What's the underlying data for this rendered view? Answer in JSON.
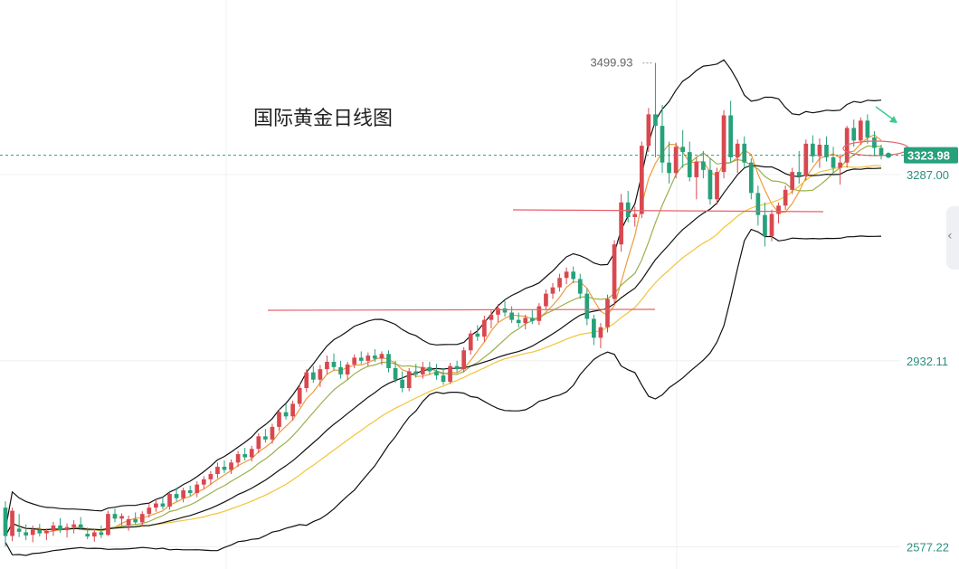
{
  "chart_data": {
    "type": "candlestick",
    "title": "国际黄金日线图",
    "y_axis_labels": [
      {
        "text": "3287.00",
        "value": 3287.0
      },
      {
        "text": "2932.11",
        "value": 2932.11
      },
      {
        "text": "2577.22",
        "value": 2577.22
      }
    ],
    "current_price_tag": {
      "text": "3323.98",
      "value": 3323.98
    },
    "high_marker": {
      "text": "3499.93",
      "value": 3499.93
    },
    "ylim": [
      2535,
      3620
    ],
    "grid": true,
    "colors": {
      "up": "#d9484f",
      "down": "#26a17b",
      "ma_fast": "#f09a3e",
      "ma_mid": "#9ab04a",
      "ma_slow": "#f2c438",
      "bollinger": "#111111",
      "support_line": "#e8606a",
      "price_tag": "#26a17b",
      "axis_text": "#2a8f7f"
    },
    "candles": [
      [
        2652,
        2664,
        2578,
        2598
      ],
      [
        2598,
        2652,
        2588,
        2646
      ],
      [
        2612,
        2640,
        2596,
        2606
      ],
      [
        2605,
        2620,
        2590,
        2599
      ],
      [
        2600,
        2618,
        2586,
        2610
      ],
      [
        2610,
        2621,
        2597,
        2603
      ],
      [
        2603,
        2612,
        2590,
        2608
      ],
      [
        2608,
        2625,
        2598,
        2618
      ],
      [
        2618,
        2632,
        2604,
        2609
      ],
      [
        2609,
        2622,
        2595,
        2615
      ],
      [
        2615,
        2628,
        2603,
        2620
      ],
      [
        2620,
        2634,
        2610,
        2614
      ],
      [
        2602,
        2614,
        2592,
        2597
      ],
      [
        2597,
        2611,
        2587,
        2605
      ],
      [
        2605,
        2618,
        2594,
        2600
      ],
      [
        2600,
        2646,
        2598,
        2640
      ],
      [
        2640,
        2650,
        2624,
        2631
      ],
      [
        2631,
        2641,
        2618,
        2636
      ],
      [
        2618,
        2637,
        2608,
        2630
      ],
      [
        2630,
        2643,
        2620,
        2624
      ],
      [
        2624,
        2645,
        2616,
        2640
      ],
      [
        2640,
        2659,
        2633,
        2652
      ],
      [
        2652,
        2668,
        2644,
        2660
      ],
      [
        2660,
        2672,
        2649,
        2654
      ],
      [
        2654,
        2684,
        2648,
        2678
      ],
      [
        2678,
        2690,
        2664,
        2670
      ],
      [
        2670,
        2690,
        2662,
        2685
      ],
      [
        2685,
        2694,
        2674,
        2680
      ],
      [
        2680,
        2702,
        2672,
        2696
      ],
      [
        2696,
        2712,
        2688,
        2706
      ],
      [
        2706,
        2722,
        2696,
        2716
      ],
      [
        2716,
        2738,
        2708,
        2730
      ],
      [
        2730,
        2742,
        2718,
        2724
      ],
      [
        2724,
        2744,
        2716,
        2738
      ],
      [
        2738,
        2760,
        2730,
        2754
      ],
      [
        2754,
        2766,
        2742,
        2748
      ],
      [
        2748,
        2770,
        2740,
        2764
      ],
      [
        2764,
        2794,
        2756,
        2788
      ],
      [
        2788,
        2802,
        2776,
        2782
      ],
      [
        2782,
        2812,
        2774,
        2806
      ],
      [
        2806,
        2840,
        2798,
        2834
      ],
      [
        2834,
        2850,
        2820,
        2826
      ],
      [
        2826,
        2856,
        2818,
        2850
      ],
      [
        2850,
        2888,
        2844,
        2880
      ],
      [
        2880,
        2916,
        2872,
        2910
      ],
      [
        2910,
        2922,
        2890,
        2896
      ],
      [
        2896,
        2924,
        2882,
        2916
      ],
      [
        2916,
        2942,
        2906,
        2930
      ],
      [
        2930,
        2946,
        2914,
        2920
      ],
      [
        2920,
        2932,
        2898,
        2906
      ],
      [
        2906,
        2930,
        2896,
        2925
      ],
      [
        2925,
        2944,
        2918,
        2938
      ],
      [
        2938,
        2950,
        2926,
        2932
      ],
      [
        2932,
        2948,
        2922,
        2942
      ],
      [
        2942,
        2954,
        2930,
        2936
      ],
      [
        2936,
        2950,
        2924,
        2945
      ],
      [
        2945,
        2952,
        2910,
        2918
      ],
      [
        2918,
        2932,
        2890,
        2896
      ],
      [
        2896,
        2912,
        2872,
        2880
      ],
      [
        2880,
        2918,
        2874,
        2912
      ],
      [
        2912,
        2926,
        2900,
        2906
      ],
      [
        2906,
        2930,
        2898,
        2920
      ],
      [
        2920,
        2930,
        2906,
        2912
      ],
      [
        2912,
        2926,
        2896,
        2904
      ],
      [
        2904,
        2918,
        2886,
        2892
      ],
      [
        2892,
        2928,
        2888,
        2922
      ],
      [
        2922,
        2932,
        2910,
        2916
      ],
      [
        2916,
        2958,
        2910,
        2952
      ],
      [
        2952,
        2990,
        2944,
        2984
      ],
      [
        2984,
        3000,
        2970,
        2978
      ],
      [
        2978,
        3018,
        2968,
        3010
      ],
      [
        3010,
        3028,
        2994,
        3020
      ],
      [
        3020,
        3040,
        3006,
        3032
      ],
      [
        3032,
        3046,
        3016,
        3024
      ],
      [
        3024,
        3036,
        3004,
        3010
      ],
      [
        3010,
        3024,
        2996,
        3004
      ],
      [
        3004,
        3020,
        2992,
        3014
      ],
      [
        3014,
        3030,
        3002,
        3008
      ],
      [
        3008,
        3042,
        3000,
        3036
      ],
      [
        3036,
        3068,
        3028,
        3060
      ],
      [
        3060,
        3080,
        3050,
        3072
      ],
      [
        3072,
        3098,
        3064,
        3090
      ],
      [
        3090,
        3110,
        3078,
        3102
      ],
      [
        3102,
        3112,
        3080,
        3088
      ],
      [
        3088,
        3098,
        3050,
        3060
      ],
      [
        3060,
        3070,
        3000,
        3012
      ],
      [
        3012,
        3020,
        2962,
        2976
      ],
      [
        2976,
        3004,
        2956,
        2996
      ],
      [
        2996,
        3058,
        2986,
        3050
      ],
      [
        3050,
        3162,
        3040,
        3154
      ],
      [
        3154,
        3250,
        3140,
        3234
      ],
      [
        3234,
        3256,
        3196,
        3206
      ],
      [
        3206,
        3226,
        3188,
        3212
      ],
      [
        3212,
        3350,
        3204,
        3342
      ],
      [
        3342,
        3414,
        3330,
        3402
      ],
      [
        3402,
        3500,
        3320,
        3380
      ],
      [
        3380,
        3420,
        3290,
        3310
      ],
      [
        3310,
        3350,
        3270,
        3290
      ],
      [
        3290,
        3348,
        3280,
        3340
      ],
      [
        3340,
        3372,
        3300,
        3330
      ],
      [
        3330,
        3350,
        3274,
        3282
      ],
      [
        3282,
        3320,
        3240,
        3312
      ],
      [
        3312,
        3332,
        3280,
        3296
      ],
      [
        3296,
        3318,
        3230,
        3240
      ],
      [
        3240,
        3300,
        3230,
        3292
      ],
      [
        3292,
        3410,
        3280,
        3400
      ],
      [
        3400,
        3428,
        3310,
        3320
      ],
      [
        3320,
        3354,
        3290,
        3346
      ],
      [
        3346,
        3360,
        3300,
        3310
      ],
      [
        3310,
        3318,
        3240,
        3252
      ],
      [
        3252,
        3266,
        3190,
        3210
      ],
      [
        3210,
        3234,
        3150,
        3170
      ],
      [
        3170,
        3220,
        3160,
        3212
      ],
      [
        3212,
        3234,
        3194,
        3228
      ],
      [
        3228,
        3266,
        3220,
        3258
      ],
      [
        3258,
        3300,
        3250,
        3292
      ],
      [
        3292,
        3332,
        3270,
        3284
      ],
      [
        3284,
        3354,
        3276,
        3346
      ],
      [
        3346,
        3362,
        3310,
        3322
      ],
      [
        3322,
        3356,
        3300,
        3344
      ],
      [
        3344,
        3360,
        3312,
        3320
      ],
      [
        3320,
        3340,
        3290,
        3300
      ],
      [
        3300,
        3326,
        3268,
        3310
      ],
      [
        3310,
        3380,
        3300,
        3376
      ],
      [
        3376,
        3392,
        3340,
        3352
      ],
      [
        3352,
        3396,
        3344,
        3390
      ],
      [
        3390,
        3402,
        3346,
        3358
      ],
      [
        3358,
        3370,
        3322,
        3338
      ],
      [
        3338,
        3344,
        3316,
        3324
      ]
    ]
  }
}
